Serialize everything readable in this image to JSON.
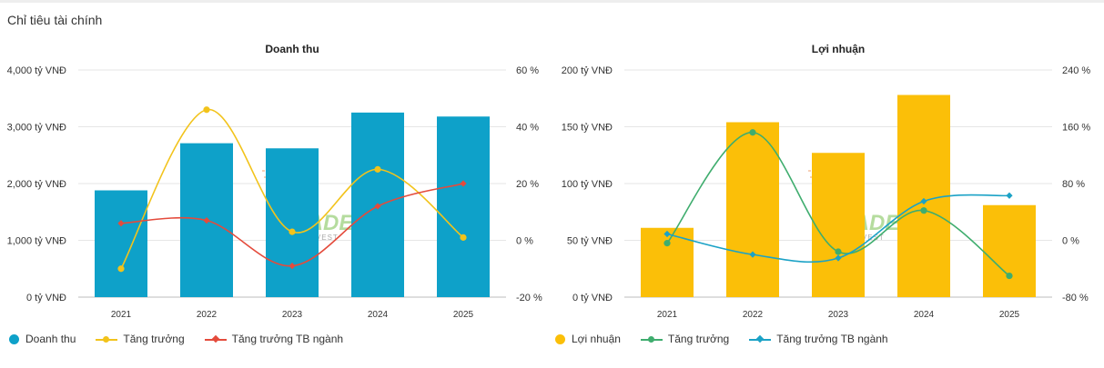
{
  "page_title": "Chỉ tiêu tài chính",
  "watermark": {
    "text": "-TRADE",
    "subtext": "LUE DATA    VEST"
  },
  "chart_data": [
    {
      "id": "revenue",
      "type": "bar",
      "title": "Doanh thu",
      "categories": [
        "2021",
        "2022",
        "2023",
        "2024",
        "2025"
      ],
      "bar_series": {
        "name": "Doanh thu",
        "values": [
          1880,
          2710,
          2620,
          3250,
          3180
        ],
        "color": "#0ea1c9"
      },
      "line_series": [
        {
          "name": "Tăng trưởng",
          "values": [
            -10,
            46,
            3,
            25,
            1
          ],
          "color": "#f2c31b",
          "marker": "circle"
        },
        {
          "name": "Tăng trưởng TB ngành",
          "values": [
            6,
            7,
            -9,
            12,
            20
          ],
          "color": "#e44b3c",
          "marker": "diamond"
        }
      ],
      "y_left": {
        "min": 0,
        "max": 4000,
        "ticks": [
          0,
          1000,
          2000,
          3000,
          4000
        ],
        "tick_labels": [
          "0 tỷ VNĐ",
          "1,000 tỷ VNĐ",
          "2,000 tỷ VNĐ",
          "3,000 tỷ VNĐ",
          "4,000 tỷ VNĐ"
        ]
      },
      "y_right": {
        "min": -20,
        "max": 60,
        "ticks": [
          -20,
          0,
          20,
          40,
          60
        ],
        "tick_labels": [
          "-20 %",
          "0 %",
          "20 %",
          "40 %",
          "60 %"
        ]
      },
      "grid": true,
      "legend_position": "bottom-left"
    },
    {
      "id": "profit",
      "type": "bar",
      "title": "Lợi nhuận",
      "categories": [
        "2021",
        "2022",
        "2023",
        "2024",
        "2025"
      ],
      "bar_series": {
        "name": "Lợi nhuận",
        "values": [
          61,
          154,
          127,
          178,
          81
        ],
        "color": "#fbbf08"
      },
      "line_series": [
        {
          "name": "Tăng trưởng",
          "values": [
            -4,
            152,
            -16,
            42,
            -50
          ],
          "color": "#3fad6e",
          "marker": "circle"
        },
        {
          "name": "Tăng trưởng TB ngành",
          "values": [
            9,
            -20,
            -25,
            55,
            63
          ],
          "color": "#1ba2c6",
          "marker": "diamond"
        }
      ],
      "y_left": {
        "min": 0,
        "max": 200,
        "ticks": [
          0,
          50,
          100,
          150,
          200
        ],
        "tick_labels": [
          "0 tỷ VNĐ",
          "50 tỷ VNĐ",
          "100 tỷ VNĐ",
          "150 tỷ VNĐ",
          "200 tỷ VNĐ"
        ]
      },
      "y_right": {
        "min": -80,
        "max": 240,
        "ticks": [
          -80,
          0,
          80,
          160,
          240
        ],
        "tick_labels": [
          "-80 %",
          "0 %",
          "80 %",
          "160 %",
          "240 %"
        ]
      },
      "grid": true,
      "legend_position": "bottom-left"
    }
  ]
}
